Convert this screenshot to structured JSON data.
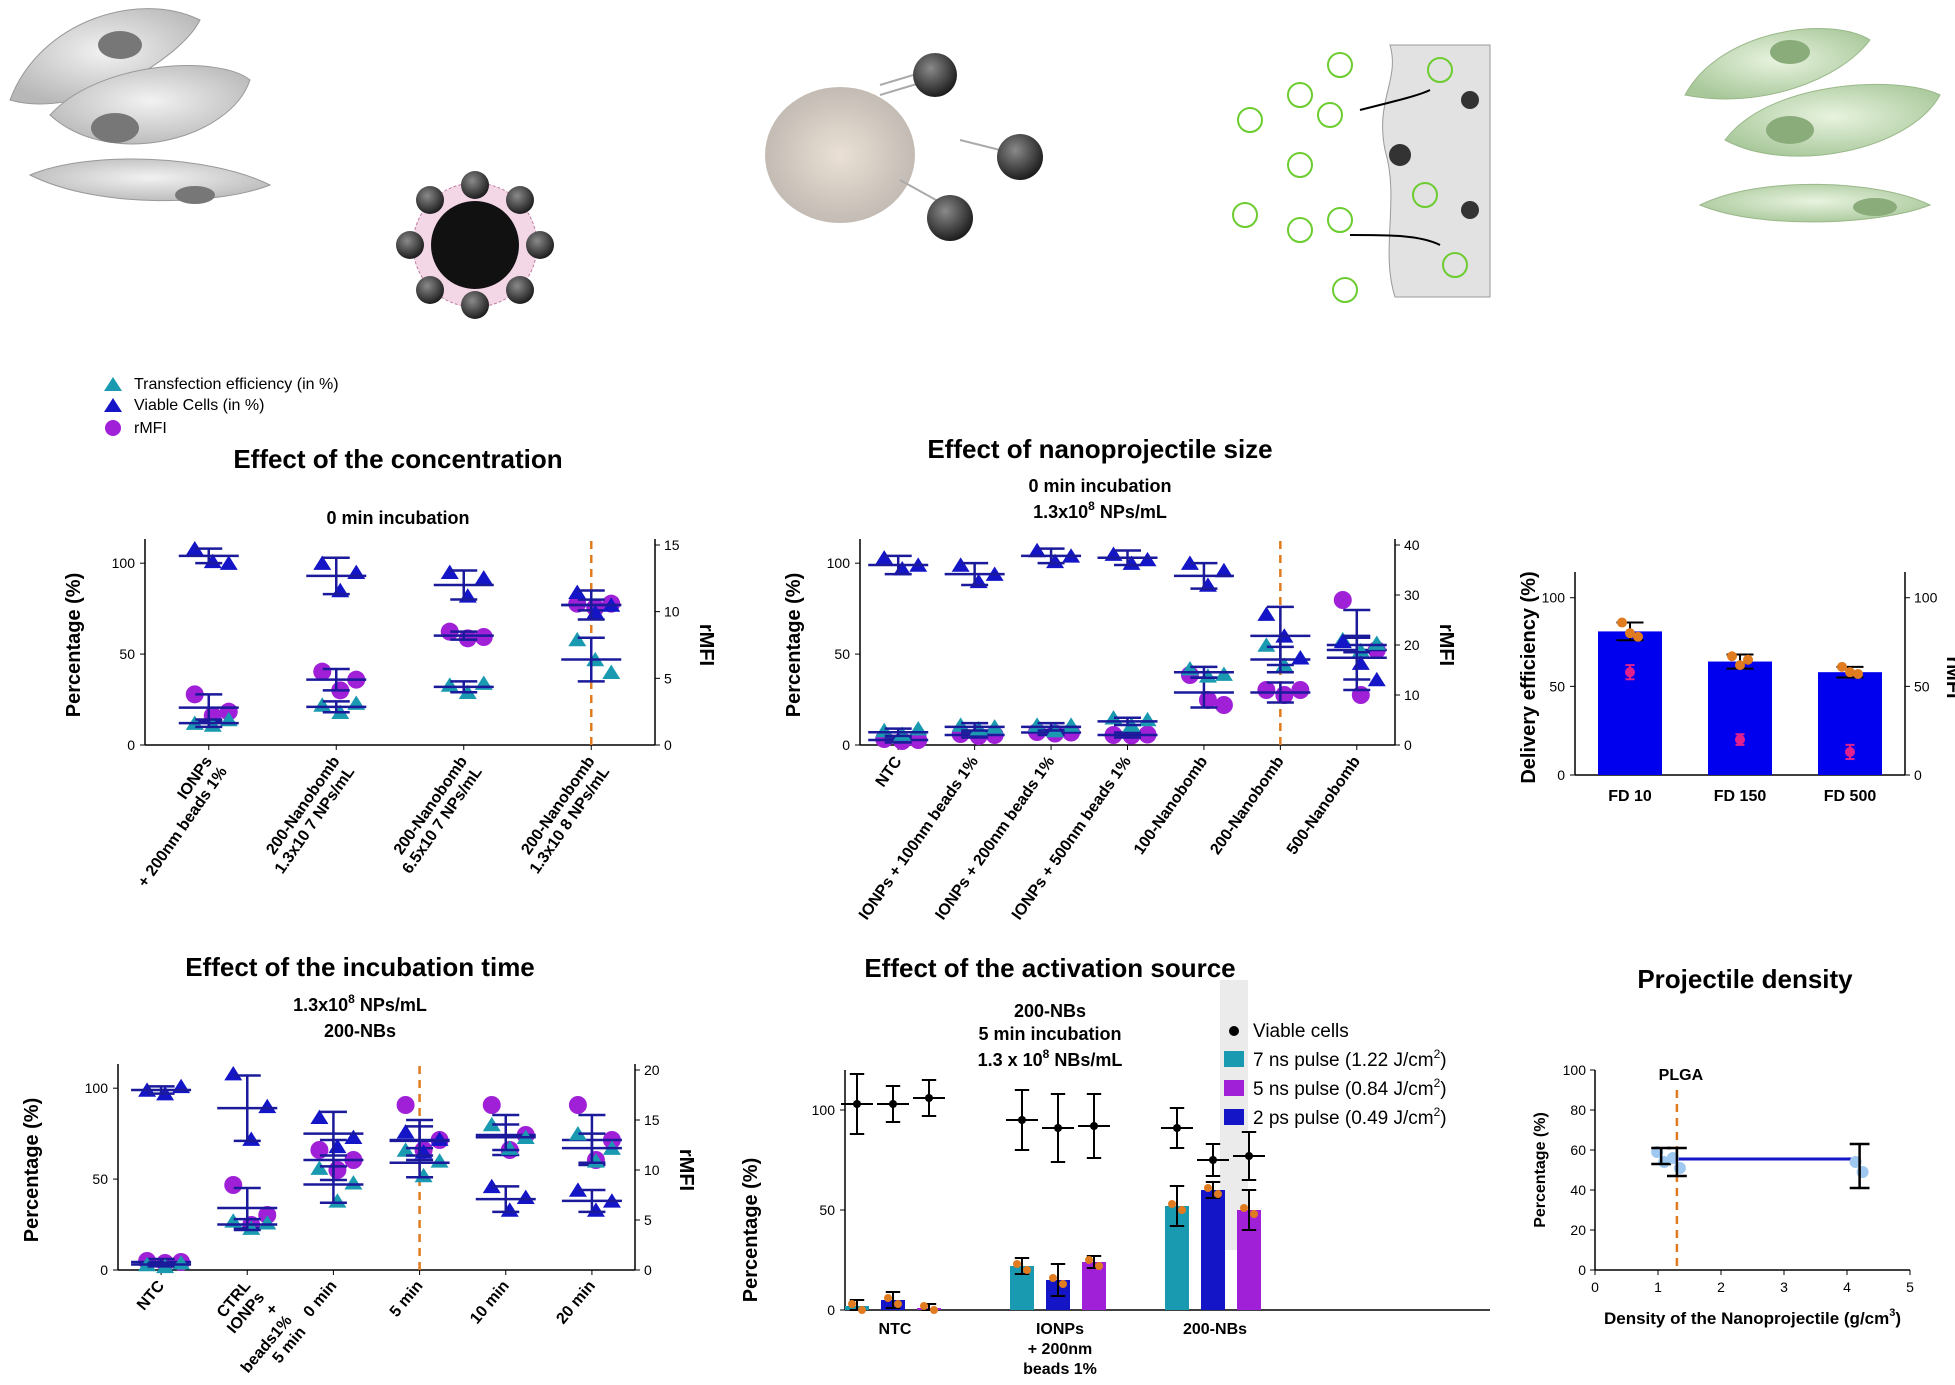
{
  "colors": {
    "teal": "#1a9ab0",
    "blue": "#1515c8",
    "purple": "#a020d8",
    "orange": "#e07b20",
    "pink": "#e0208c",
    "navy": "#1a1a9a",
    "black": "#000000",
    "barblue": "#0000ee"
  },
  "legend_top": {
    "items": [
      "Transfection efficiency (in %)",
      "Viable Cells (in %)",
      "rMFI"
    ]
  },
  "icons": [
    "cell-illustration-gray",
    "nanobomb-complex-illustration",
    "nanoprojectile-burst-illustration",
    "membrane-delivery-illustration",
    "cell-illustration-green"
  ],
  "chart_data": [
    {
      "id": "conc",
      "type": "scatter",
      "title": "Effect of the concentration",
      "subtitle": "0 min incubation",
      "ylabel": "Percentage (%)",
      "y2label": "rMFI",
      "ylim": [
        0,
        110
      ],
      "y2lim": [
        0,
        15
      ],
      "yticks": [
        "0",
        "50",
        "100"
      ],
      "y2ticks": [
        "0",
        "5",
        "10",
        "15"
      ],
      "categories": [
        "IONPs\n+ 200nm beads 1%",
        "200-Nanobomb\n1.3x10 7 NPs/mL",
        "200-Nanobomb\n6.5x10 7 NPs/mL",
        "200-Nanobomb\n1.3x10 8 NPs/mL"
      ],
      "viable": [
        {
          "mean": 104,
          "sd": 4,
          "pts": [
            108,
            101,
            100
          ]
        },
        {
          "mean": 93,
          "sd": 10,
          "pts": [
            100,
            85,
            95
          ]
        },
        {
          "mean": 88,
          "sd": 8,
          "pts": [
            95,
            82,
            92
          ]
        },
        {
          "mean": 77,
          "sd": 8,
          "pts": [
            84,
            73,
            77
          ]
        }
      ],
      "transfection": [
        {
          "mean": 12,
          "sd": 2,
          "pts": [
            12,
            11,
            14
          ]
        },
        {
          "mean": 21,
          "sd": 3,
          "pts": [
            22,
            18,
            23
          ]
        },
        {
          "mean": 32,
          "sd": 3,
          "pts": [
            33,
            29,
            34
          ]
        },
        {
          "mean": 47,
          "sd": 12,
          "pts": [
            58,
            47,
            40
          ]
        }
      ],
      "rmfi": [
        {
          "mean": 2.8,
          "sd": 1,
          "pts": [
            3.8,
            2.2,
            2.5
          ]
        },
        {
          "mean": 4.9,
          "sd": 0.8,
          "pts": [
            5.5,
            4.1,
            4.9
          ]
        },
        {
          "mean": 8.2,
          "sd": 0.3,
          "pts": [
            8.5,
            8.0,
            8.1
          ]
        },
        {
          "mean": 10.5,
          "sd": 0.4,
          "pts": [
            10.6,
            10.3,
            10.6
          ]
        }
      ],
      "dashed_after": 3
    },
    {
      "id": "size",
      "type": "scatter",
      "title": "Effect of nanoprojectile size",
      "subtitle": "0 min incubation",
      "subtitle2": "1.3x10",
      "subtitle2_sup": "8",
      "subtitle2_rest": " NPs/mL",
      "ylabel": "Percentage (%)",
      "y2label": "rMFI",
      "ylim": [
        0,
        110
      ],
      "y2lim": [
        0,
        40
      ],
      "yticks": [
        "0",
        "50",
        "100"
      ],
      "y2ticks": [
        "0",
        "10",
        "20",
        "30",
        "40"
      ],
      "categories": [
        "NTC",
        "IONPs + 100nm beads 1%",
        "IONPs + 200nm beads 1%",
        "IONPs + 500nm beads 1%",
        "100-Nanobomb",
        "200-Nanobomb",
        "500-Nanobomb"
      ],
      "viable": [
        {
          "mean": 99,
          "sd": 5,
          "pts": [
            103,
            97,
            99
          ]
        },
        {
          "mean": 94,
          "sd": 6,
          "pts": [
            99,
            90,
            94
          ]
        },
        {
          "mean": 104,
          "sd": 4,
          "pts": [
            107,
            101,
            104
          ]
        },
        {
          "mean": 103,
          "sd": 4,
          "pts": [
            105,
            100,
            102
          ]
        },
        {
          "mean": 93,
          "sd": 7,
          "pts": [
            100,
            88,
            96
          ]
        },
        {
          "mean": 60,
          "sd": 16,
          "pts": [
            72,
            60,
            48
          ]
        },
        {
          "mean": 48,
          "sd": 12,
          "pts": [
            57,
            45,
            36
          ]
        }
      ],
      "transfection": [
        {
          "mean": 7,
          "sd": 2,
          "pts": [
            8,
            6,
            9
          ]
        },
        {
          "mean": 10,
          "sd": 2,
          "pts": [
            11,
            9,
            10
          ]
        },
        {
          "mean": 10,
          "sd": 2,
          "pts": [
            11,
            8,
            11
          ]
        },
        {
          "mean": 13,
          "sd": 2,
          "pts": [
            15,
            11,
            14
          ]
        },
        {
          "mean": 40,
          "sd": 3,
          "pts": [
            42,
            38,
            39
          ]
        },
        {
          "mean": 47,
          "sd": 7,
          "pts": [
            55,
            44,
            48
          ]
        },
        {
          "mean": 55,
          "sd": 4,
          "pts": [
            58,
            52,
            56
          ]
        }
      ],
      "rmfi": [
        {
          "mean": 1,
          "sd": 0.5,
          "pts": [
            1.2,
            0.8,
            1.0
          ]
        },
        {
          "mean": 2,
          "sd": 0.5,
          "pts": [
            2.2,
            1.8,
            2.0
          ]
        },
        {
          "mean": 2.5,
          "sd": 0.5,
          "pts": [
            2.6,
            2.3,
            2.5
          ]
        },
        {
          "mean": 2,
          "sd": 0.5,
          "pts": [
            2.0,
            1.9,
            2.1
          ]
        },
        {
          "mean": 10.5,
          "sd": 3,
          "pts": [
            14,
            9,
            8
          ]
        },
        {
          "mean": 10.5,
          "sd": 2,
          "pts": [
            11,
            10,
            11
          ]
        },
        {
          "mean": 19,
          "sd": 8,
          "pts": [
            29,
            10,
            19
          ]
        }
      ],
      "dashed_after": 5
    },
    {
      "id": "fd",
      "type": "bar",
      "ylabel": "Delivery efficiency (%)",
      "y2label": "rMFI",
      "ylim": [
        0,
        110
      ],
      "y2lim": [
        0,
        110
      ],
      "yticks": [
        "0",
        "50",
        "100"
      ],
      "y2ticks": [
        "0",
        "50",
        "100"
      ],
      "categories": [
        "FD 10",
        "FD 150",
        "FD 500"
      ],
      "values": [
        81,
        64,
        58
      ],
      "errors": [
        5,
        4,
        3
      ],
      "points": [
        [
          86,
          80,
          78
        ],
        [
          67,
          62,
          65
        ],
        [
          61,
          58,
          57
        ]
      ],
      "rmfi": [
        {
          "mean": 58,
          "sd": 4
        },
        {
          "mean": 20,
          "sd": 3
        },
        {
          "mean": 13,
          "sd": 4
        }
      ]
    },
    {
      "id": "time",
      "type": "scatter",
      "title": "Effect of the incubation time",
      "subtitle": "1.3x10",
      "subtitle_sup": "8",
      "subtitle_rest": " NPs/mL",
      "subtitle2": "200-NBs",
      "ylabel": "Percentage (%)",
      "y2label": "rMFI",
      "ylim": [
        0,
        110
      ],
      "y2lim": [
        0,
        20
      ],
      "yticks": [
        "0",
        "50",
        "100"
      ],
      "y2ticks": [
        "0",
        "5",
        "10",
        "15",
        "20"
      ],
      "categories": [
        "NTC",
        "CTRL\nIONPs\n+\nbeads1%\n5 min",
        "0 min",
        "5 min",
        "10 min",
        "20 min"
      ],
      "viable": [
        {
          "mean": 99,
          "sd": 2,
          "pts": [
            99,
            97,
            101
          ]
        },
        {
          "mean": 89,
          "sd": 18,
          "pts": [
            108,
            72,
            90
          ]
        },
        {
          "mean": 75,
          "sd": 12,
          "pts": [
            84,
            68,
            73
          ]
        },
        {
          "mean": 71,
          "sd": 8,
          "pts": [
            76,
            65,
            72
          ]
        },
        {
          "mean": 39,
          "sd": 7,
          "pts": [
            46,
            33,
            40
          ]
        },
        {
          "mean": 38,
          "sd": 6,
          "pts": [
            44,
            33,
            38
          ]
        }
      ],
      "transfection": [
        {
          "mean": 3,
          "sd": 1,
          "pts": [
            3,
            2,
            4
          ]
        },
        {
          "mean": 25,
          "sd": 3,
          "pts": [
            27,
            23,
            26
          ]
        },
        {
          "mean": 47,
          "sd": 10,
          "pts": [
            56,
            38,
            48
          ]
        },
        {
          "mean": 59,
          "sd": 8,
          "pts": [
            66,
            52,
            60
          ]
        },
        {
          "mean": 73,
          "sd": 7,
          "pts": [
            80,
            67,
            73
          ]
        },
        {
          "mean": 67,
          "sd": 8,
          "pts": [
            75,
            60,
            67
          ]
        }
      ],
      "rmfi": [
        {
          "mean": 0.8,
          "sd": 0.3,
          "pts": [
            0.9,
            0.7,
            0.8
          ]
        },
        {
          "mean": 6.2,
          "sd": 2,
          "pts": [
            8.5,
            4.5,
            5.5
          ]
        },
        {
          "mean": 11,
          "sd": 2,
          "pts": [
            12,
            10,
            11
          ]
        },
        {
          "mean": 13,
          "sd": 2,
          "pts": [
            16.5,
            12,
            13
          ]
        },
        {
          "mean": 13.5,
          "sd": 2,
          "pts": [
            16.5,
            12,
            13.5
          ]
        },
        {
          "mean": 13,
          "sd": 2.5,
          "pts": [
            16.5,
            11,
            13
          ]
        }
      ],
      "dashed_after": 3
    },
    {
      "id": "source",
      "type": "bar",
      "title": "Effect of the activation source",
      "subtitle": "200-NBs",
      "subtitle2": "5 min incubation",
      "subtitle3": "1.3 x 10",
      "subtitle3_sup": "8",
      "subtitle3_rest": " NBs/mL",
      "ylabel": "Percentage (%)",
      "ylim": [
        0,
        120
      ],
      "yticks": [
        "0",
        "50",
        "100"
      ],
      "categories": [
        "NTC",
        "IONPs\n+ 200nm\nbeads 1%",
        "200-NBs"
      ],
      "legend": [
        {
          "label": "Viable cells",
          "kind": "dot"
        },
        {
          "label": "7 ns pulse (1.22 J/cm",
          "sup": "2",
          "end": ")",
          "kind": "teal"
        },
        {
          "label": "5 ns pulse (0.84 J/cm",
          "sup": "2",
          "end": ")",
          "kind": "purple"
        },
        {
          "label": "2 ps pulse (0.49 J/cm",
          "sup": "2",
          "end": ")",
          "kind": "blue"
        }
      ],
      "bars": [
        {
          "order": [
            "teal",
            "blue",
            "purple"
          ],
          "values": [
            2,
            5,
            1
          ],
          "err": [
            3,
            4,
            2
          ],
          "viable": [
            103,
            103,
            106
          ],
          "vsd": [
            15,
            9,
            9
          ]
        },
        {
          "order": [
            "teal",
            "blue",
            "purple"
          ],
          "values": [
            22,
            15,
            24
          ],
          "err": [
            4,
            8,
            3
          ],
          "viable": [
            95,
            91,
            92
          ],
          "vsd": [
            15,
            17,
            16
          ]
        },
        {
          "order": [
            "teal",
            "blue",
            "purple"
          ],
          "values": [
            52,
            60,
            50
          ],
          "err": [
            10,
            4,
            10
          ],
          "viable": [
            91,
            75,
            77
          ],
          "vsd": [
            10,
            8,
            12
          ]
        }
      ]
    },
    {
      "id": "density",
      "type": "line",
      "title": "Projectile density",
      "annotation": "PLGA",
      "xlabel": "Density of the Nanoprojectile (g/cm",
      "xlabel_sup": "3",
      "xlabel_end": ")",
      "ylabel": "Percentage (%)",
      "xlim": [
        0,
        5
      ],
      "ylim": [
        0,
        100
      ],
      "xticks": [
        "0",
        "1",
        "2",
        "3",
        "4",
        "5"
      ],
      "yticks": [
        "0",
        "20",
        "40",
        "60",
        "80",
        "100"
      ],
      "points": [
        {
          "x": 1.05,
          "y": 57,
          "sd": 4
        },
        {
          "x": 1.3,
          "y": 54,
          "sd": 7
        },
        {
          "x": 4.2,
          "y": 52,
          "sd": 11
        }
      ],
      "line_y": 55.5,
      "dashed_x": 1.3
    }
  ]
}
